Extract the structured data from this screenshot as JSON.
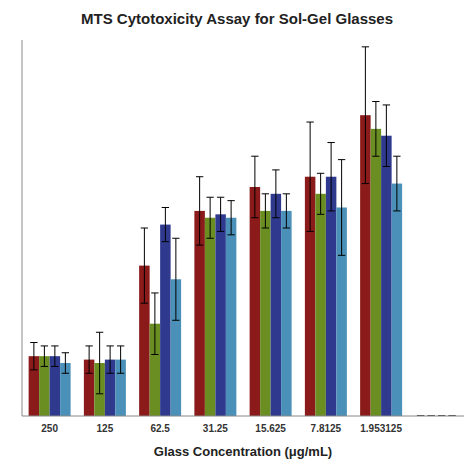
{
  "chart_data": {
    "type": "bar",
    "title": "MTS Cytotoxicity Assay for Sol-Gel Glasses",
    "x_label": "Glass Concentration (μg/mL)",
    "categories": [
      "250",
      "125",
      "62.5",
      "31.25",
      "15.625",
      "7.8125",
      "1.953125",
      null
    ],
    "series": [
      {
        "color": "#8B1A1A",
        "values": [
          0.175,
          0.165,
          0.44,
          0.6,
          0.67,
          0.7,
          0.88,
          0.0
        ],
        "errors": [
          0.04,
          0.04,
          0.11,
          0.1,
          0.09,
          0.16,
          0.2,
          0.0
        ]
      },
      {
        "color": "#6B8E23",
        "values": [
          0.175,
          0.155,
          0.27,
          0.58,
          0.6,
          0.65,
          0.84,
          0.0
        ],
        "errors": [
          0.03,
          0.09,
          0.09,
          0.06,
          0.05,
          0.06,
          0.08,
          0.0
        ]
      },
      {
        "color": "#2F3A8F",
        "values": [
          0.175,
          0.165,
          0.56,
          0.59,
          0.65,
          0.7,
          0.82,
          0.0
        ],
        "errors": [
          0.03,
          0.04,
          0.05,
          0.05,
          0.07,
          0.1,
          0.09,
          0.0
        ]
      },
      {
        "color": "#4A90B8",
        "values": [
          0.155,
          0.165,
          0.4,
          0.58,
          0.6,
          0.61,
          0.68,
          0.0
        ],
        "errors": [
          0.03,
          0.04,
          0.12,
          0.05,
          0.05,
          0.14,
          0.08,
          0.0
        ]
      }
    ],
    "ylim": [
      0,
      1.1
    ],
    "grid": false,
    "tick_labels": "x"
  }
}
